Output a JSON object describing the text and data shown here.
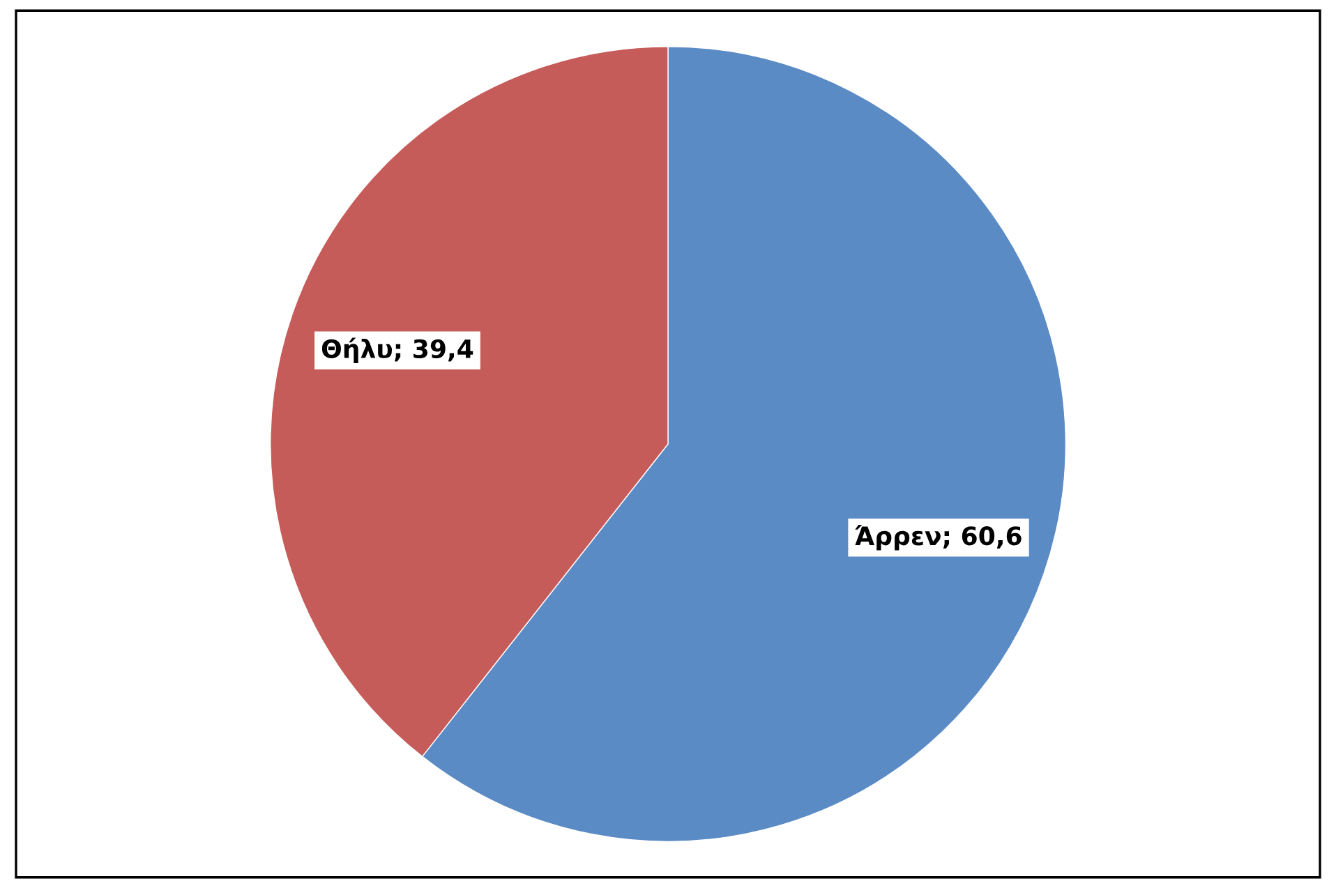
{
  "chart_data": {
    "type": "pie",
    "categories": [
      "Άρρεν",
      "Θήλυ"
    ],
    "values": [
      60.6,
      39.4
    ],
    "colors": [
      "#5b8bc5",
      "#c65c5a"
    ],
    "value_labels": [
      "60,6",
      "39,4"
    ]
  }
}
